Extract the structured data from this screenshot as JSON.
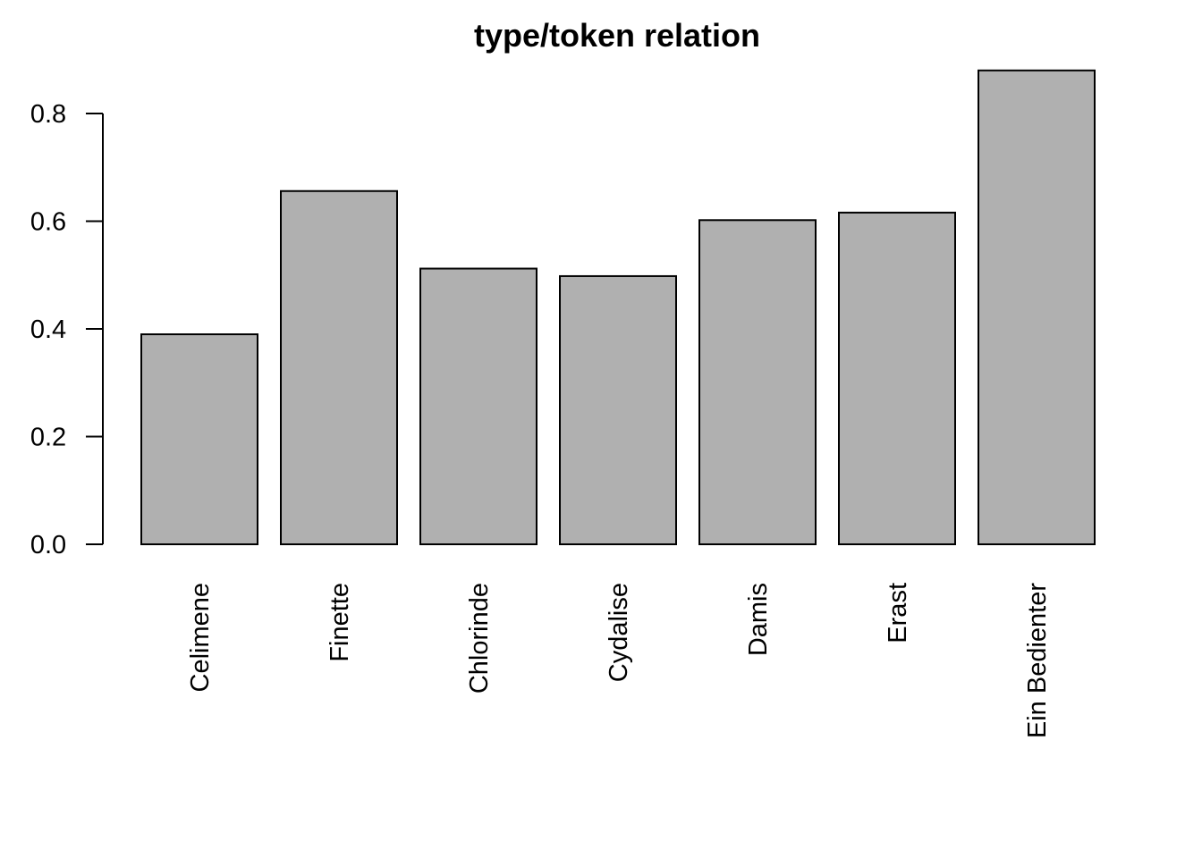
{
  "chart_data": {
    "type": "bar",
    "title": "type/token relation",
    "xlabel": "",
    "ylabel": "",
    "categories": [
      "Celimene",
      "Finette",
      "Chlorinde",
      "Cydalise",
      "Damis",
      "Erast",
      "Ein Bedienter"
    ],
    "values": [
      0.39,
      0.656,
      0.512,
      0.498,
      0.602,
      0.616,
      0.88
    ],
    "ylim": [
      0,
      0.8
    ],
    "yticks": [
      0.0,
      0.2,
      0.4,
      0.6,
      0.8
    ],
    "ytick_labels": [
      "0.0",
      "0.2",
      "0.4",
      "0.6",
      "0.8"
    ],
    "bar_color": "#b0b0b0",
    "grid": false,
    "category_label_orientation": "vertical"
  }
}
